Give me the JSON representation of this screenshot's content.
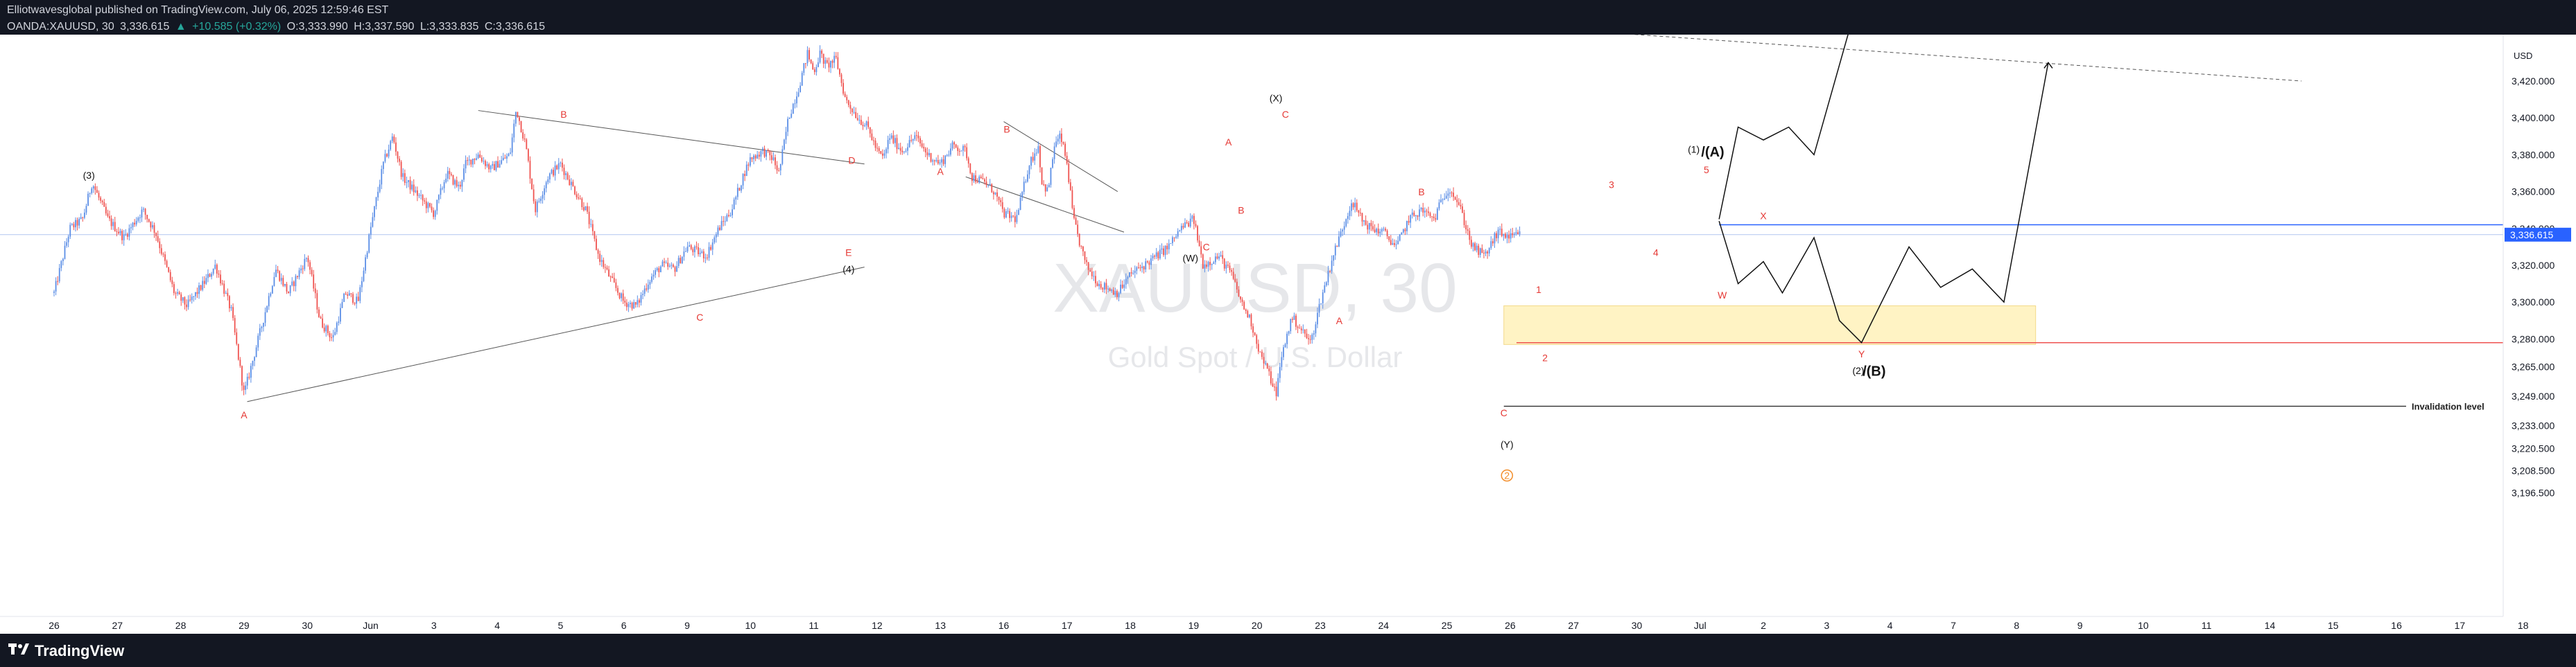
{
  "header": {
    "publisher": "Elliotwavesglobal published on TradingView.com, July 06, 2025 12:59:46 EST",
    "symbol": "OANDA:XAUUSD, 30",
    "last": "3,336.615",
    "change": "+10.585 (+0.32%)",
    "open": "O:3,333.990",
    "high": "H:3,337.590",
    "low": "L:3,333.835",
    "close": "C:3,336.615"
  },
  "watermark": {
    "symbol": "XAUUSD, 30",
    "name": "Gold Spot / U.S. Dollar"
  },
  "footer": {
    "brand": "TradingView"
  },
  "colors": {
    "up": "#5b8ee6",
    "down": "#ef5350",
    "wave_label": "#e53935",
    "zone": "#fff3c4",
    "price_badge": "#2962ff"
  },
  "chart_data": {
    "type": "candlestick",
    "symbol": "XAUUSD",
    "timeframe": "30",
    "currency_label": "USD",
    "y_ticks": [
      3196.5,
      3208.5,
      3220.5,
      3233.0,
      3249.0,
      3265.0,
      3280.0,
      3300.0,
      3320.0,
      3340.0,
      3360.0,
      3380.0,
      3400.0,
      3420.0
    ],
    "y_tick_labels": [
      "3,196.500",
      "3,208.500",
      "3,220.500",
      "3,233.000",
      "3,249.000",
      "3,265.000",
      "3,280.000",
      "3,300.000",
      "3,320.000",
      "3,340.000",
      "3,360.000",
      "3,380.000",
      "3,400.000",
      "3,420.000"
    ],
    "x_ticks": [
      "26",
      "27",
      "28",
      "29",
      "30",
      "Jun",
      "3",
      "4",
      "5",
      "6",
      "9",
      "10",
      "11",
      "12",
      "13",
      "16",
      "17",
      "18",
      "19",
      "20",
      "23",
      "24",
      "25",
      "26",
      "27",
      "30",
      "Jul",
      "2",
      "3",
      "4",
      "7",
      "8",
      "9",
      "10",
      "11",
      "14",
      "15",
      "16",
      "17",
      "18"
    ],
    "last_price": 3336.615,
    "last_price_label": "3,336.615",
    "price_path": [
      [
        0,
        3305
      ],
      [
        0.25,
        3340
      ],
      [
        0.45,
        3345
      ],
      [
        0.6,
        3365
      ],
      [
        0.85,
        3345
      ],
      [
        1.1,
        3335
      ],
      [
        1.4,
        3350
      ],
      [
        1.6,
        3338
      ],
      [
        1.9,
        3305
      ],
      [
        2.1,
        3298
      ],
      [
        2.4,
        3312
      ],
      [
        2.55,
        3320
      ],
      [
        2.8,
        3295
      ],
      [
        3.0,
        3250
      ],
      [
        3.3,
        3290
      ],
      [
        3.5,
        3318
      ],
      [
        3.7,
        3305
      ],
      [
        4.0,
        3325
      ],
      [
        4.2,
        3290
      ],
      [
        4.4,
        3280
      ],
      [
        4.6,
        3305
      ],
      [
        4.8,
        3300
      ],
      [
        5.0,
        3340
      ],
      [
        5.2,
        3375
      ],
      [
        5.35,
        3390
      ],
      [
        5.5,
        3368
      ],
      [
        5.7,
        3360
      ],
      [
        5.9,
        3352
      ],
      [
        6.0,
        3348
      ],
      [
        6.2,
        3370
      ],
      [
        6.4,
        3362
      ],
      [
        6.5,
        3375
      ],
      [
        6.7,
        3380
      ],
      [
        6.9,
        3372
      ],
      [
        7.0,
        3375
      ],
      [
        7.2,
        3380
      ],
      [
        7.3,
        3405
      ],
      [
        7.45,
        3385
      ],
      [
        7.6,
        3350
      ],
      [
        7.8,
        3368
      ],
      [
        8.0,
        3375
      ],
      [
        8.2,
        3362
      ],
      [
        8.4,
        3350
      ],
      [
        8.6,
        3325
      ],
      [
        8.8,
        3312
      ],
      [
        9.0,
        3300
      ],
      [
        9.2,
        3298
      ],
      [
        9.4,
        3312
      ],
      [
        9.6,
        3320
      ],
      [
        9.8,
        3318
      ],
      [
        10.0,
        3330
      ],
      [
        10.3,
        3325
      ],
      [
        10.5,
        3340
      ],
      [
        10.7,
        3350
      ],
      [
        10.9,
        3370
      ],
      [
        11.0,
        3378
      ],
      [
        11.2,
        3382
      ],
      [
        11.35,
        3378
      ],
      [
        11.45,
        3370
      ],
      [
        11.6,
        3400
      ],
      [
        11.75,
        3415
      ],
      [
        11.9,
        3435
      ],
      [
        12.0,
        3425
      ],
      [
        12.1,
        3435
      ],
      [
        12.2,
        3428
      ],
      [
        12.35,
        3432
      ],
      [
        12.5,
        3410
      ],
      [
        12.7,
        3400
      ],
      [
        12.85,
        3395
      ],
      [
        13.0,
        3382
      ],
      [
        13.1,
        3378
      ],
      [
        13.2,
        3390
      ],
      [
        13.4,
        3382
      ],
      [
        13.6,
        3390
      ],
      [
        13.8,
        3380
      ],
      [
        14.0,
        3375
      ],
      [
        14.2,
        3385
      ],
      [
        14.4,
        3382
      ],
      [
        14.5,
        3368
      ],
      [
        14.7,
        3365
      ],
      [
        14.85,
        3360
      ],
      [
        15.0,
        3348
      ],
      [
        15.2,
        3345
      ],
      [
        15.4,
        3375
      ],
      [
        15.55,
        3385
      ],
      [
        15.6,
        3365
      ],
      [
        15.7,
        3360
      ],
      [
        15.8,
        3385
      ],
      [
        15.9,
        3390
      ],
      [
        16.0,
        3375
      ],
      [
        16.1,
        3345
      ],
      [
        16.2,
        3332
      ],
      [
        16.3,
        3320
      ],
      [
        16.5,
        3310
      ],
      [
        16.8,
        3305
      ],
      [
        17.0,
        3315
      ],
      [
        17.3,
        3322
      ],
      [
        17.6,
        3330
      ],
      [
        17.8,
        3340
      ],
      [
        18.0,
        3345
      ],
      [
        18.15,
        3320
      ],
      [
        18.4,
        3325
      ],
      [
        18.6,
        3315
      ],
      [
        18.75,
        3300
      ],
      [
        18.9,
        3290
      ],
      [
        19.05,
        3272
      ],
      [
        19.2,
        3260
      ],
      [
        19.3,
        3250
      ],
      [
        19.4,
        3272
      ],
      [
        19.55,
        3292
      ],
      [
        19.7,
        3285
      ],
      [
        19.85,
        3278
      ],
      [
        20.0,
        3300
      ],
      [
        20.2,
        3325
      ],
      [
        20.4,
        3345
      ],
      [
        20.5,
        3355
      ],
      [
        20.65,
        3345
      ],
      [
        20.8,
        3340
      ],
      [
        21.0,
        3338
      ],
      [
        21.2,
        3330
      ],
      [
        21.4,
        3345
      ],
      [
        21.6,
        3350
      ],
      [
        21.8,
        3345
      ],
      [
        21.95,
        3358
      ],
      [
        22.05,
        3362
      ],
      [
        22.2,
        3352
      ],
      [
        22.4,
        3330
      ],
      [
        22.6,
        3325
      ],
      [
        22.8,
        3338
      ],
      [
        23.0,
        3335
      ],
      [
        23.15,
        3336.6
      ]
    ],
    "annotations": {
      "wave_labels_red": [
        {
          "text": "A",
          "x": 3.0,
          "y": 3237
        },
        {
          "text": "B",
          "x": 8.05,
          "y": 3400
        },
        {
          "text": "C",
          "x": 10.2,
          "y": 3290
        },
        {
          "text": "D",
          "x": 12.6,
          "y": 3375
        },
        {
          "text": "E",
          "x": 12.55,
          "y": 3325
        },
        {
          "text": "A",
          "x": 14.0,
          "y": 3369
        },
        {
          "text": "B",
          "x": 15.05,
          "y": 3392
        },
        {
          "text": "C",
          "x": 18.2,
          "y": 3328
        },
        {
          "text": "A",
          "x": 18.55,
          "y": 3385
        },
        {
          "text": "B",
          "x": 18.75,
          "y": 3348
        },
        {
          "text": "C",
          "x": 19.45,
          "y": 3400
        },
        {
          "text": "A",
          "x": 20.3,
          "y": 3288
        },
        {
          "text": "B",
          "x": 21.6,
          "y": 3358
        },
        {
          "text": "C",
          "x": 22.9,
          "y": 3238
        },
        {
          "text": "1",
          "x": 23.45,
          "y": 3305
        },
        {
          "text": "2",
          "x": 23.55,
          "y": 3268
        },
        {
          "text": "3",
          "x": 24.6,
          "y": 3362
        },
        {
          "text": "4",
          "x": 25.3,
          "y": 3325
        },
        {
          "text": "5",
          "x": 26.1,
          "y": 3370
        },
        {
          "text": "W",
          "x": 26.35,
          "y": 3302
        },
        {
          "text": "X",
          "x": 27.0,
          "y": 3345
        },
        {
          "text": "Y",
          "x": 28.55,
          "y": 3270
        }
      ],
      "wave_labels_black": [
        {
          "text": "(3)",
          "x": 0.55,
          "y": 3367
        },
        {
          "text": "(4)",
          "x": 12.55,
          "y": 3316
        },
        {
          "text": "(W)",
          "x": 17.95,
          "y": 3322
        },
        {
          "text": "(X)",
          "x": 19.3,
          "y": 3409
        },
        {
          "text": "(1)",
          "x": 25.9,
          "y": 3381
        },
        {
          "text": "/(A)",
          "x": 26.2,
          "y": 3379
        },
        {
          "text": "(2)",
          "x": 28.5,
          "y": 3261
        },
        {
          "text": "/(B)",
          "x": 28.75,
          "y": 3260
        },
        {
          "text": "(Y)",
          "x": 22.95,
          "y": 3221
        },
        {
          "text": "2",
          "x": 22.95,
          "y": 3204
        }
      ],
      "invalidation_label": "Invalidation level",
      "invalidation_price": 3243.5,
      "support_zone": {
        "x_start": 22.9,
        "x_end": 31.3,
        "price_top": 3298,
        "price_bottom": 3277
      },
      "red_horizontal": 3278,
      "blue_horizontal": 3342
    }
  }
}
